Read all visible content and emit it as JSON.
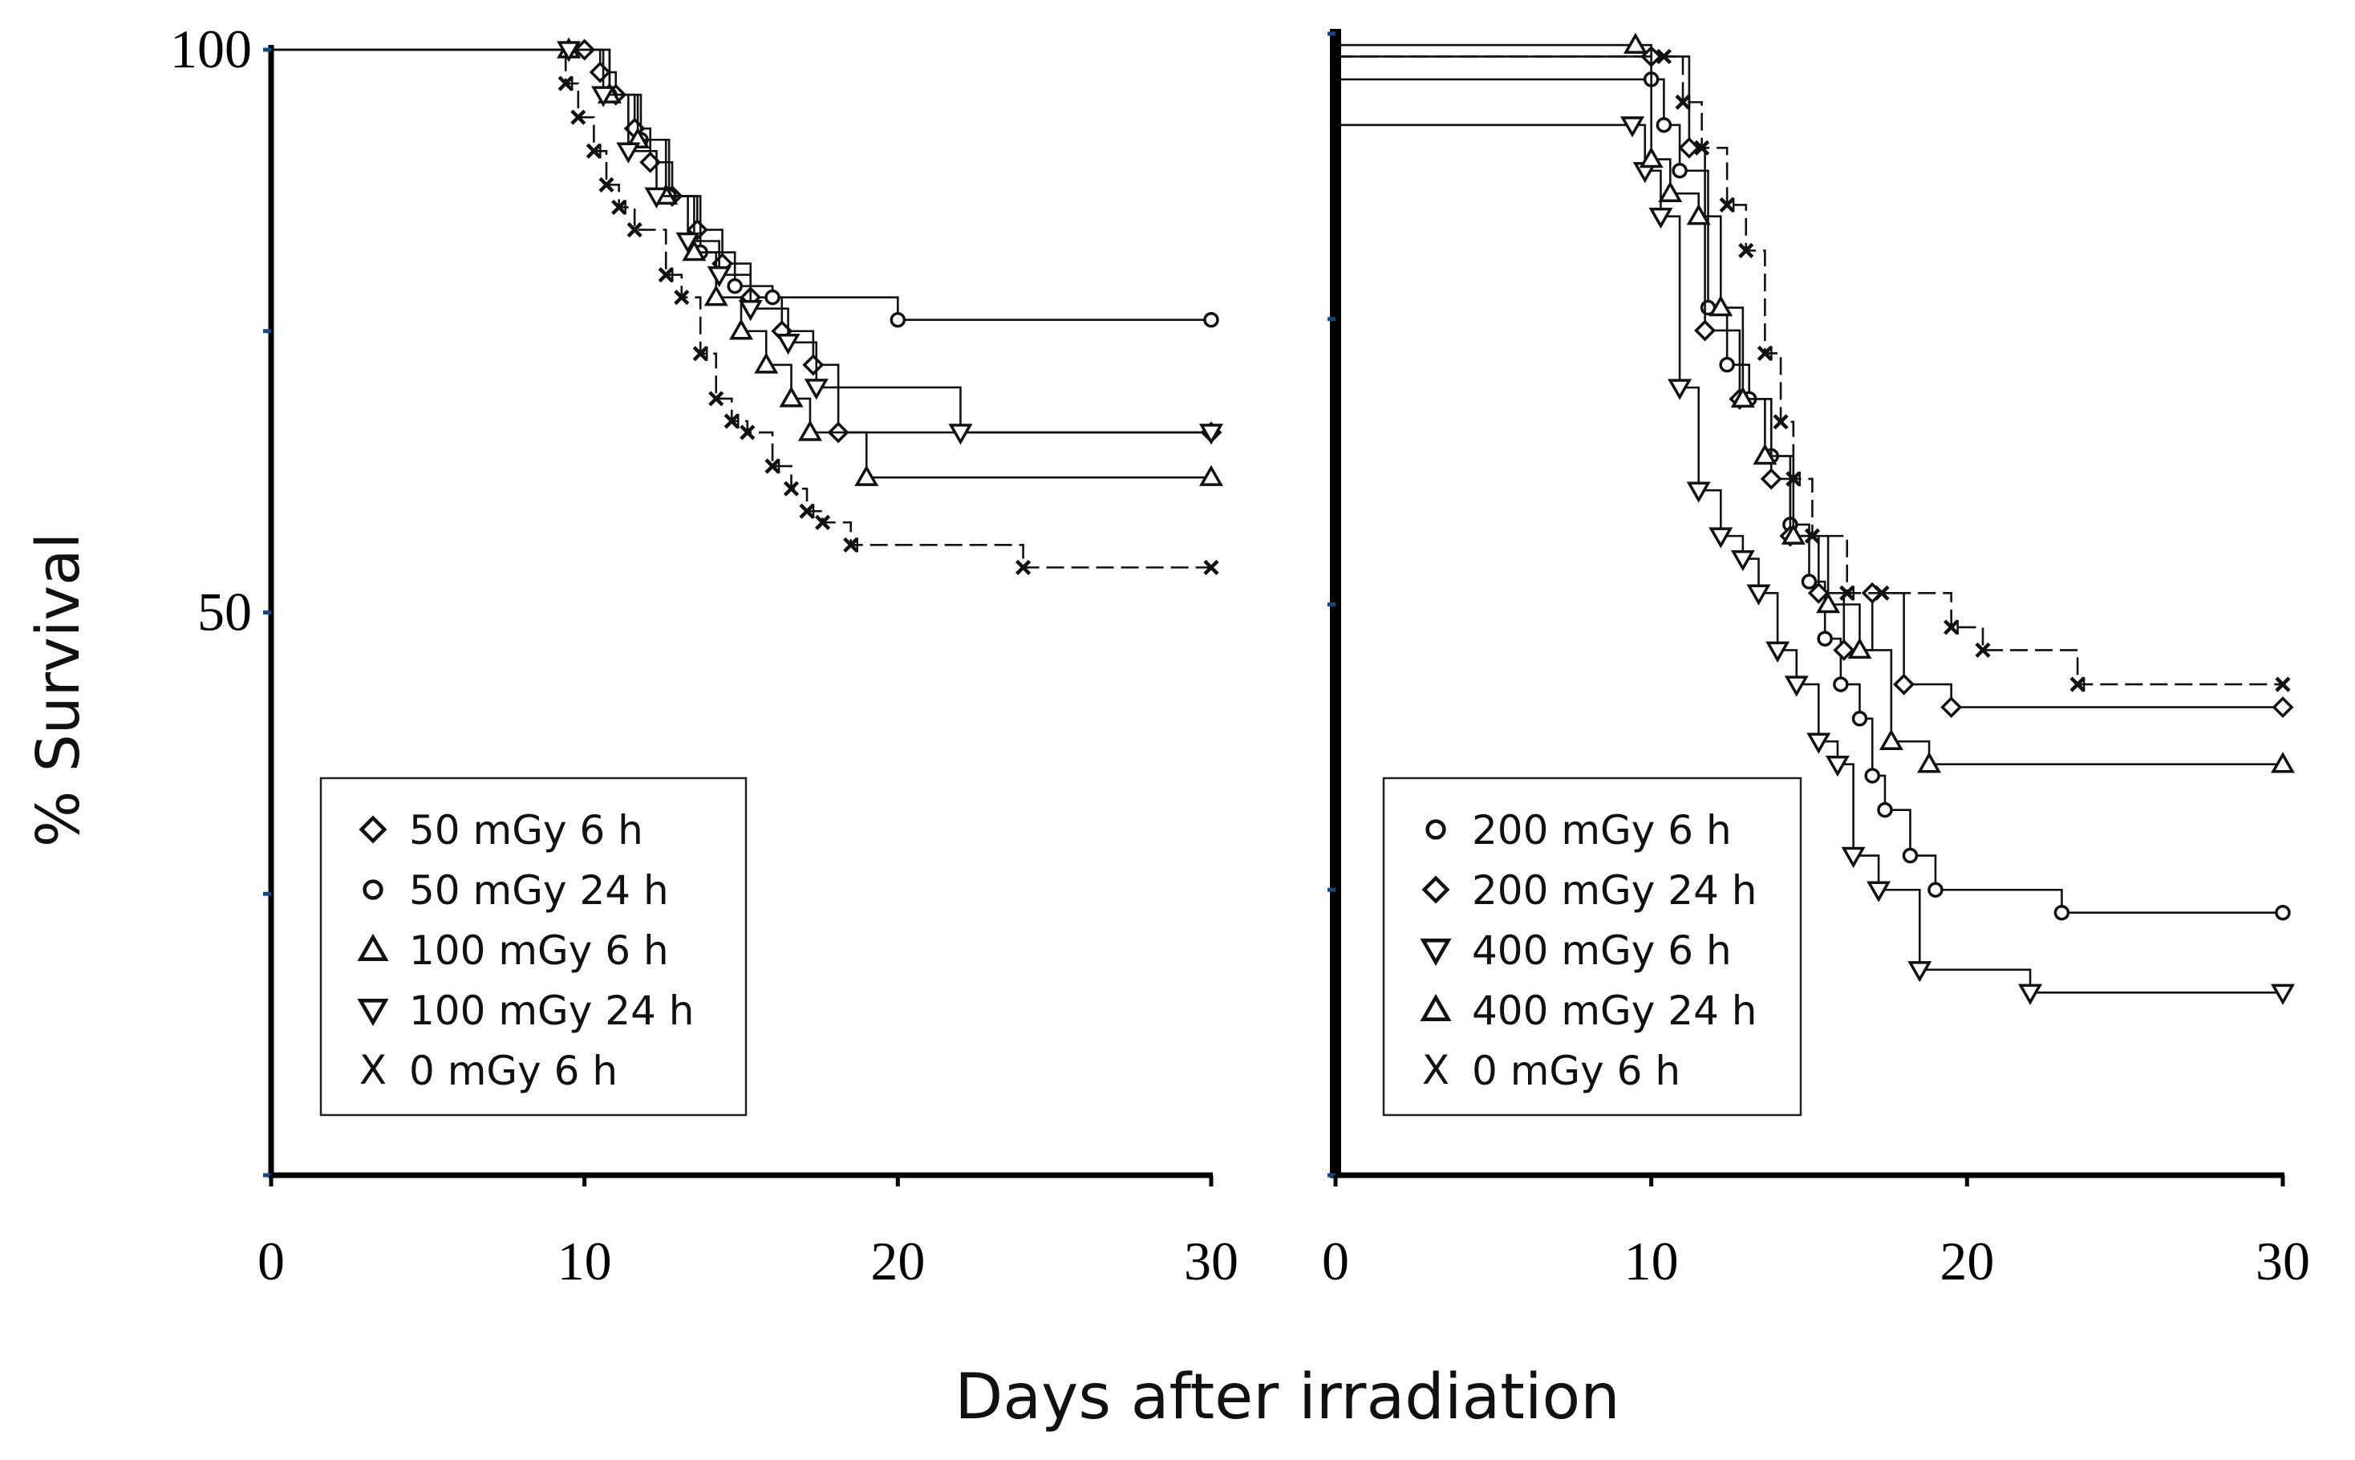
{
  "figure": {
    "ylabel": "% Survival",
    "xlabel": "Days after irradiation"
  },
  "chart_data": [
    {
      "type": "line",
      "subtype": "kaplan-meier",
      "xlim": [
        0,
        30
      ],
      "ylim": [
        0,
        100
      ],
      "x_ticks": [
        0,
        10,
        20,
        30
      ],
      "x_tick_labels": [
        "0",
        "10",
        "20",
        "30"
      ],
      "y_ticks": [
        0,
        25,
        50,
        75,
        100
      ],
      "y_tick_labels": [
        "",
        "",
        "50",
        "",
        "100"
      ],
      "legend_position": "lower-left",
      "series": [
        {
          "name": "50 mGy 6 h",
          "marker": "diamond",
          "dash": false,
          "x": [
            10,
            10.5,
            11,
            11.6,
            12.1,
            12.8,
            13.6,
            14.4,
            15.3,
            16.3,
            17.3,
            18.1,
            30
          ],
          "y": [
            100,
            98,
            96,
            93,
            90,
            87,
            84,
            81,
            78,
            75,
            72,
            66,
            66
          ]
        },
        {
          "name": "50 mGy 24 h",
          "marker": "circle",
          "dash": false,
          "x": [
            9.2,
            10.8,
            11.8,
            12.7,
            13.7,
            14.8,
            16,
            20,
            30
          ],
          "y": [
            100,
            96,
            92,
            87,
            82,
            79,
            78,
            76,
            76
          ]
        },
        {
          "name": "100 mGy 6 h",
          "marker": "triangle-up",
          "dash": false,
          "x": [
            9.5,
            10.8,
            11.7,
            12.6,
            13.5,
            14.2,
            15,
            15.8,
            16.6,
            17.2,
            19,
            30
          ],
          "y": [
            100,
            96,
            92,
            87,
            82,
            78,
            75,
            72,
            69,
            66,
            62,
            62
          ]
        },
        {
          "name": "100 mGy 24 h",
          "marker": "triangle-down",
          "dash": false,
          "x": [
            9.5,
            10.6,
            11.4,
            12.3,
            13.3,
            14.3,
            15.3,
            16.5,
            17.4,
            22,
            30
          ],
          "y": [
            100,
            96,
            91,
            87,
            83,
            80,
            77,
            74,
            70,
            66,
            66
          ]
        },
        {
          "name": "0 mGy 6 h",
          "marker": "x",
          "dash": true,
          "x": [
            9,
            9.4,
            9.8,
            10.3,
            10.7,
            11.1,
            11.6,
            12.6,
            13.1,
            13.7,
            14.2,
            14.7,
            15.2,
            16,
            16.6,
            17.1,
            17.6,
            18.5,
            24,
            30
          ],
          "y": [
            100,
            97,
            94,
            91,
            88,
            86,
            84,
            80,
            78,
            73,
            69,
            67,
            66,
            63,
            61,
            59,
            58,
            56,
            54,
            54
          ]
        }
      ]
    },
    {
      "type": "line",
      "subtype": "kaplan-meier",
      "xlim": [
        0,
        30
      ],
      "ylim": [
        0,
        100
      ],
      "x_ticks": [
        0,
        10,
        20,
        30
      ],
      "x_tick_labels": [
        "0",
        "10",
        "20",
        "30"
      ],
      "y_ticks": [
        0,
        25,
        50,
        75,
        100
      ],
      "legend_position": "lower-left",
      "series": [
        {
          "name": "200 mGy  6 h",
          "marker": "circle",
          "dash": false,
          "x": [
            10,
            10.4,
            10.9,
            11.8,
            12.4,
            13.1,
            13.8,
            14.4,
            15,
            15.5,
            16,
            16.6,
            17,
            17.4,
            18.2,
            19,
            23,
            30
          ],
          "y": [
            96,
            92,
            88,
            76,
            71,
            68,
            63,
            57,
            52,
            47,
            43,
            40,
            35,
            32,
            28,
            25,
            23,
            23
          ]
        },
        {
          "name": "200 mGy 24 h",
          "marker": "diamond",
          "dash": false,
          "x": [
            10,
            11.2,
            11.7,
            12.8,
            13.8,
            14.4,
            15.3,
            16.1,
            17.0,
            18.0,
            19.5,
            30
          ],
          "y": [
            98,
            90,
            74,
            68,
            61,
            56,
            51,
            46,
            51,
            43,
            41,
            41
          ]
        },
        {
          "name": "400 mGy 6 h",
          "marker": "triangle-down",
          "dash": false,
          "x": [
            9.4,
            9.8,
            10.3,
            10.9,
            11.5,
            12.2,
            12.9,
            13.4,
            14,
            14.6,
            15.3,
            15.9,
            16.4,
            17.2,
            18.5,
            22,
            30
          ],
          "y": [
            92,
            88,
            84,
            69,
            60,
            56,
            54,
            51,
            46,
            43,
            38,
            36,
            28,
            25,
            18,
            16,
            16
          ]
        },
        {
          "name": "400 mGy 24 h",
          "marker": "triangle-up",
          "dash": false,
          "x": [
            9.5,
            10,
            10.6,
            11.5,
            12.2,
            12.9,
            13.6,
            14.5,
            15.6,
            16.6,
            17.6,
            18.8,
            30
          ],
          "y": [
            99,
            89,
            86,
            84,
            76,
            68,
            63,
            56,
            50,
            46,
            38,
            36,
            36
          ]
        },
        {
          "name": "0 mGy 6 h",
          "marker": "x",
          "dash": true,
          "x": [
            10.4,
            11,
            11.6,
            12.4,
            13,
            13.6,
            14.1,
            14.5,
            15.1,
            16.2,
            17.3,
            19.5,
            20.5,
            23.5,
            30
          ],
          "y": [
            98,
            94,
            90,
            85,
            81,
            72,
            66,
            61,
            56,
            51,
            51,
            48,
            46,
            43,
            43
          ]
        }
      ]
    }
  ]
}
